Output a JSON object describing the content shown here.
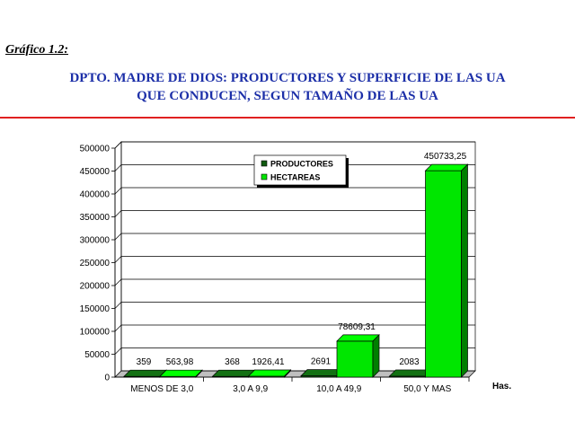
{
  "header": {
    "figure_label": "Gráfico 1.2:",
    "title_line1": "DPTO. MADRE DE DIOS: PRODUCTORES Y SUPERFICIE DE LAS UA",
    "title_line2": "QUE CONDUCEN, SEGUN TAMAÑO DE LAS UA"
  },
  "colors": {
    "title": "#1c2fa8",
    "rule": "#e02020",
    "productores": "#0f5a0f",
    "hectareas": "#00e600"
  },
  "chart_data": {
    "type": "bar",
    "style": "3d-clustered",
    "categories": [
      "MENOS DE 3,0",
      "3,0 A 9,9",
      "10,0 A 49,9",
      "50,0 Y MAS"
    ],
    "series": [
      {
        "name": "PRODUCTORES",
        "values": [
          359,
          368,
          2691,
          2083
        ],
        "labels": [
          "359",
          "368",
          "2691",
          "2083"
        ]
      },
      {
        "name": "HECTAREAS",
        "values": [
          563.98,
          1926.41,
          78609.31,
          450733.25
        ],
        "labels": [
          "563,98",
          "1926,41",
          "78609,31",
          "450733,25"
        ]
      }
    ],
    "xlabel": "Has.",
    "ylabel": "",
    "ylim": [
      0,
      500000
    ],
    "yticks": [
      0,
      50000,
      100000,
      150000,
      200000,
      250000,
      300000,
      350000,
      400000,
      450000,
      500000
    ],
    "grid": true,
    "legend": "top-center"
  }
}
